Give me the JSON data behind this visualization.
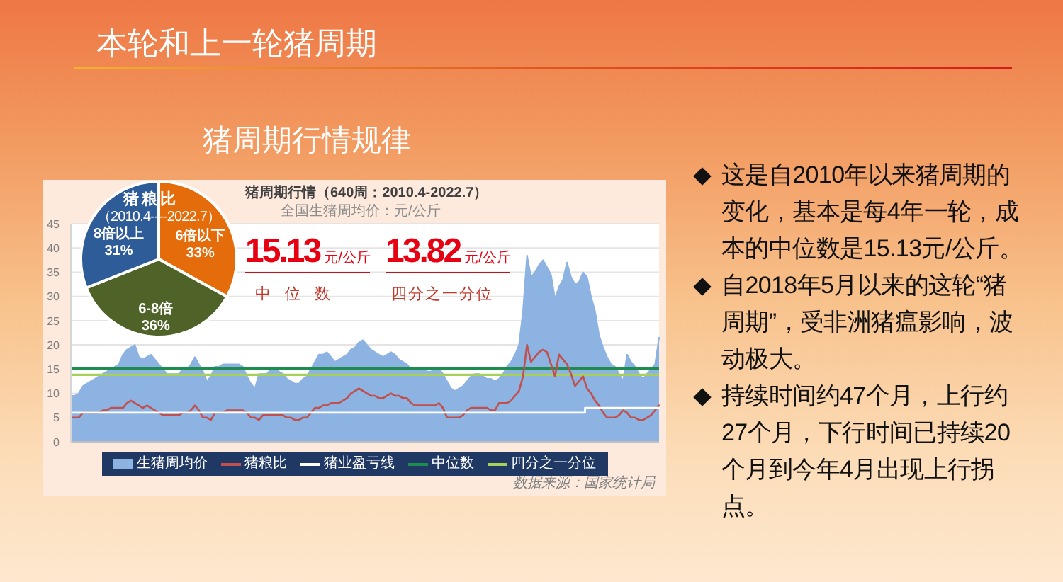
{
  "chart_data": [
    {
      "type": "other",
      "title": "本轮和上一轮猪周期",
      "subtitle": "猪周期行情规律",
      "annotations": [
        "这是自2010年以来猪周期的变化，基本是每4年一轮，成本的中位数是15.13元/公斤。",
        "自2018年5月以来的这轮“猪周期”，受非洲猪瘟影响，波动极大。",
        "持续时间约47个月，上行约27个月，下行时间已持续20个月到今年4月出现上行拐点。"
      ]
    },
    {
      "type": "area",
      "title": "猪周期行情（640周：2010.4-2022.7）",
      "subtitle": "全国生猪周均价：元/公斤",
      "categories": [
        null,
        null,
        null,
        null,
        null,
        null,
        null,
        null,
        null,
        null,
        null,
        null,
        null,
        null,
        null,
        null,
        null,
        null,
        null,
        null,
        null,
        null,
        null,
        null,
        null,
        null,
        null,
        null,
        null,
        null,
        null,
        null,
        null,
        null,
        null,
        null,
        null,
        null,
        null,
        null,
        null,
        null,
        null,
        null,
        null,
        null,
        null,
        null,
        null,
        null,
        null,
        null,
        null,
        null,
        null,
        null,
        null,
        null,
        null,
        null,
        null,
        null,
        null,
        null,
        null,
        null,
        null,
        null,
        null,
        null,
        null,
        null,
        null,
        null,
        null,
        null,
        null,
        null,
        null,
        null,
        null,
        null,
        null,
        null,
        null,
        null,
        null,
        null,
        null,
        null,
        null,
        null,
        null,
        null,
        null,
        null,
        null,
        null,
        null,
        null,
        null,
        null,
        null,
        null,
        null,
        null,
        null,
        null,
        null,
        null,
        null,
        null,
        null,
        null,
        null,
        null,
        null,
        null,
        null,
        null,
        null,
        null,
        null,
        null,
        null,
        null,
        null,
        null,
        null,
        null,
        null,
        null,
        null,
        null,
        null,
        null,
        null,
        null,
        null,
        null,
        null,
        null,
        null,
        null,
        null,
        null,
        null,
        null
      ],
      "series": [
        {
          "name": "生猪周均价",
          "type": "area",
          "color": "#8db3e2",
          "values": [
            9.5,
            9.5,
            10,
            11.5,
            12,
            12.5,
            13,
            13.5,
            14,
            14.5,
            15,
            15.5,
            16,
            18,
            19,
            19.5,
            20,
            17.5,
            17,
            17.5,
            18,
            17,
            16,
            15,
            14,
            14,
            14,
            14,
            15,
            15,
            16,
            17.5,
            16,
            14.5,
            12.5,
            13.5,
            15.5,
            15.5,
            16,
            16,
            16,
            16,
            16,
            15.5,
            13.5,
            12,
            11,
            14,
            14,
            14,
            15,
            15,
            14.5,
            14,
            13,
            12.5,
            12,
            12,
            13,
            13.5,
            15,
            16.5,
            18,
            18,
            18.5,
            17.5,
            16.5,
            17,
            17.5,
            18,
            19,
            19.5,
            20.5,
            21,
            20,
            19,
            18.5,
            18,
            17.5,
            18,
            18.5,
            18,
            17,
            16.5,
            16,
            15,
            15,
            15,
            15,
            14.5,
            14.5,
            15,
            15,
            14,
            12.5,
            11,
            10.5,
            11,
            11.5,
            12.5,
            13.5,
            14,
            14,
            13.5,
            13,
            13,
            12.5,
            13,
            14,
            15.5,
            16.5,
            18,
            20,
            27,
            38.5,
            34,
            35,
            36.5,
            37.5,
            36,
            34.5,
            29.5,
            32,
            33.5,
            37,
            34,
            32.5,
            33,
            35,
            34,
            30,
            27,
            22,
            19.5,
            17.5,
            16,
            15.5,
            14,
            12.5,
            18,
            16.5,
            15.5,
            14,
            13,
            14,
            15,
            16,
            21.5
          ]
        },
        {
          "name": "猪粮比",
          "type": "line",
          "color": "#c0504d",
          "values": [
            5,
            5,
            5,
            6,
            6,
            6,
            6,
            6,
            6.5,
            6.5,
            7,
            7,
            7,
            7,
            8,
            8.5,
            8,
            7.5,
            7,
            7.5,
            7,
            6.5,
            6,
            5.5,
            5.5,
            5.5,
            5.5,
            5.5,
            6,
            6,
            6.5,
            7.5,
            6.5,
            5,
            5,
            4.5,
            6,
            6,
            6,
            6.5,
            6.5,
            6.5,
            6.5,
            6.5,
            6,
            5,
            5,
            4.5,
            5.5,
            5.5,
            5.5,
            5.5,
            5.5,
            5.5,
            5,
            5,
            4.5,
            4.5,
            5,
            5,
            6,
            7,
            7,
            7.5,
            7.5,
            8,
            8,
            8,
            8.5,
            9,
            10,
            10.5,
            11,
            10.5,
            10,
            9.5,
            9.5,
            9,
            9,
            9.5,
            10,
            9.5,
            9.5,
            9,
            9,
            8,
            7.5,
            7.5,
            7.5,
            7.5,
            7.5,
            7.5,
            8,
            7,
            5,
            5,
            5,
            5,
            5.5,
            6.5,
            7,
            7,
            7,
            7,
            7,
            6.5,
            6.5,
            8,
            8,
            8,
            8.5,
            9.5,
            10.5,
            13.5,
            20,
            16.5,
            17.5,
            18.5,
            19,
            18.5,
            16,
            13.5,
            18,
            17,
            16,
            14,
            11.5,
            12.5,
            13.5,
            11,
            10,
            8.5,
            7.5,
            6,
            5,
            5,
            5,
            5.5,
            6.5,
            6,
            5,
            5,
            4.5,
            4.5,
            5,
            5.5,
            6.5,
            7.5
          ]
        },
        {
          "name": "猪业盈亏线",
          "type": "step",
          "color": "#ffffff",
          "values": [
            6,
            6,
            6,
            6,
            6,
            6,
            6,
            6,
            6,
            6,
            6,
            6,
            6,
            6,
            6,
            6,
            6,
            6,
            6,
            6,
            6,
            6,
            6,
            6,
            6,
            6,
            6,
            6,
            6,
            6,
            6,
            6,
            6,
            6,
            6,
            6,
            6,
            6,
            6,
            6,
            6,
            6,
            6,
            6,
            6,
            6,
            6,
            6,
            6,
            6,
            6,
            6,
            6,
            6,
            6,
            6,
            6,
            6,
            6,
            6,
            6,
            6,
            6,
            6,
            6,
            6,
            6,
            6,
            6,
            6,
            6,
            6,
            6,
            6,
            6,
            6,
            6,
            6,
            6,
            6,
            6,
            6,
            6,
            6,
            6,
            6,
            6,
            6,
            6,
            6,
            6,
            6,
            6,
            6,
            6,
            6,
            6,
            6,
            6,
            6,
            6,
            6,
            6,
            6,
            6,
            6,
            6,
            6,
            6,
            6,
            6,
            6,
            6,
            6,
            6,
            6,
            6,
            6,
            6,
            6,
            6,
            6,
            6,
            6,
            6,
            6,
            6,
            6,
            6,
            7,
            7,
            7,
            7,
            7,
            7,
            7,
            7,
            7,
            7,
            7,
            7,
            7,
            7,
            7,
            7,
            7,
            7,
            7
          ]
        }
      ],
      "ylim": [
        0,
        45
      ],
      "yticks": [
        0,
        5,
        10,
        15,
        20,
        25,
        30,
        35,
        40,
        45
      ],
      "tick_labels": "y",
      "grid": "y",
      "legend": "bottom",
      "ref_lines": [
        {
          "axis": "y",
          "value": 15.13,
          "label": "中位数",
          "color": "#1e8c4e"
        },
        {
          "axis": "y",
          "value": 13.82,
          "label": "四分之一分位",
          "color": "#a6d05a"
        }
      ],
      "annotations": [
        "15.13元/公斤",
        "中位数",
        "13.82元/公斤",
        "四分之一分位",
        "数据来源：国家统计局"
      ]
    },
    {
      "type": "pie",
      "title": "猪粮比",
      "subtitle": "（2010.4----2022.7）",
      "categories": [
        "6倍以下",
        "6-8倍",
        "8倍以上"
      ],
      "values": [
        33,
        36,
        31
      ],
      "colors": [
        "#e46c0a",
        "#4f6228",
        "#2e5c99"
      ],
      "value_labels": [
        "33%",
        "36%",
        "31%"
      ]
    }
  ]
}
